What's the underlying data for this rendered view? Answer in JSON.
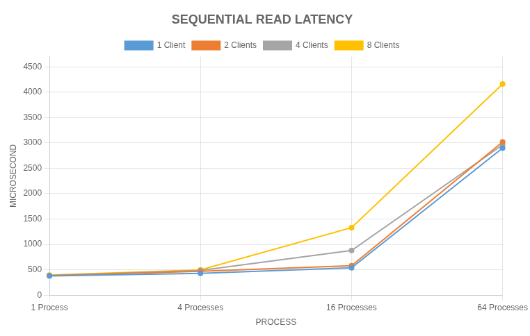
{
  "chart_data": {
    "type": "line",
    "title": "SEQUENTIAL READ LATENCY",
    "xlabel": "PROCESS",
    "ylabel": "MICROSECOND",
    "categories": [
      "1 Process",
      "4 Processes",
      "16 Processes",
      "64 Processes"
    ],
    "series": [
      {
        "name": "1 Client",
        "color": "#5B9BD5",
        "values": [
          380,
          430,
          540,
          2900
        ]
      },
      {
        "name": "2 Clients",
        "color": "#ED7D31",
        "values": [
          385,
          470,
          580,
          3020
        ]
      },
      {
        "name": "4 Clients",
        "color": "#A5A5A5",
        "values": [
          385,
          490,
          880,
          2960
        ]
      },
      {
        "name": "8 Clients",
        "color": "#FFC000",
        "values": [
          395,
          500,
          1330,
          4160
        ]
      }
    ],
    "ylim": [
      0,
      4700
    ],
    "yticks": [
      0,
      500,
      1000,
      1500,
      2000,
      2500,
      3000,
      3500,
      4000,
      4500
    ],
    "grid": true,
    "legend": "top"
  }
}
